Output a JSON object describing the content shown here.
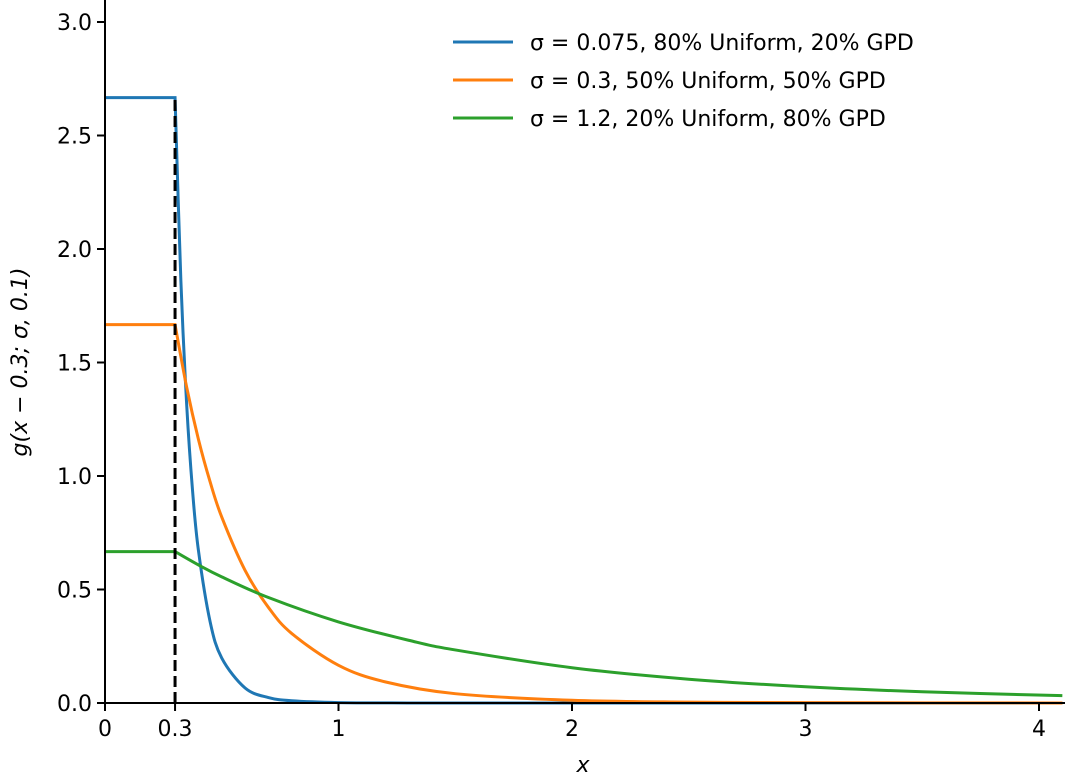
{
  "chart_data": {
    "type": "line",
    "title": "",
    "xlabel": "x",
    "ylabel": "g(x − 0.3; σ, 0.1)",
    "xlim": [
      0,
      4.1
    ],
    "ylim": [
      0,
      3.1
    ],
    "grid": false,
    "legend_position": "top-right",
    "xticks": [
      0,
      0.3,
      1,
      2,
      3,
      4
    ],
    "xtick_labels": [
      "0",
      "0.3",
      "1",
      "2",
      "3",
      "4"
    ],
    "yticks": [
      0,
      0.5,
      1,
      1.5,
      2,
      2.5,
      3
    ],
    "ytick_labels": [
      "0.0",
      "0.5",
      "1.0",
      "1.5",
      "2.0",
      "2.5",
      "3.0"
    ],
    "vline": {
      "x": 0.3,
      "y_max": 2.667,
      "style": "dashed",
      "color": "#000000"
    },
    "series": [
      {
        "name": "σ = 0.075, 80% Uniform, 20% GPD",
        "color": "#1f77b4",
        "x": [
          0,
          0.3,
          0.325,
          0.35,
          0.375,
          0.4,
          0.45,
          0.5,
          0.6,
          0.7,
          0.8,
          1.0,
          1.3,
          2.0,
          4.1
        ],
        "y": [
          2.667,
          2.667,
          1.859,
          1.311,
          0.935,
          0.673,
          0.359,
          0.198,
          0.066,
          0.024,
          0.0097,
          0.0019,
          0.0002,
          0,
          0
        ]
      },
      {
        "name": "σ = 0.3, 50% Uniform, 50% GPD",
        "color": "#ff7f0e",
        "x": [
          0,
          0.3,
          0.35,
          0.4,
          0.45,
          0.5,
          0.6,
          0.7,
          0.8,
          1.0,
          1.2,
          1.5,
          2.0,
          2.5,
          3.0,
          4.1
        ],
        "y": [
          1.667,
          1.667,
          1.39,
          1.162,
          0.975,
          0.819,
          0.584,
          0.421,
          0.306,
          0.166,
          0.093,
          0.041,
          0.0119,
          0.0039,
          0.0014,
          0.0002
        ]
      },
      {
        "name": "σ = 1.2, 20% Uniform, 80% GPD",
        "color": "#2ca02c",
        "x": [
          0,
          0.3,
          0.4,
          0.5,
          0.7,
          1.0,
          1.3,
          1.5,
          2.0,
          2.5,
          3.0,
          3.5,
          4.1
        ],
        "y": [
          0.667,
          0.667,
          0.6085,
          0.5558,
          0.4647,
          0.3573,
          0.2764,
          0.2337,
          0.1553,
          0.1047,
          0.0715,
          0.0495,
          0.0323
        ]
      }
    ]
  }
}
